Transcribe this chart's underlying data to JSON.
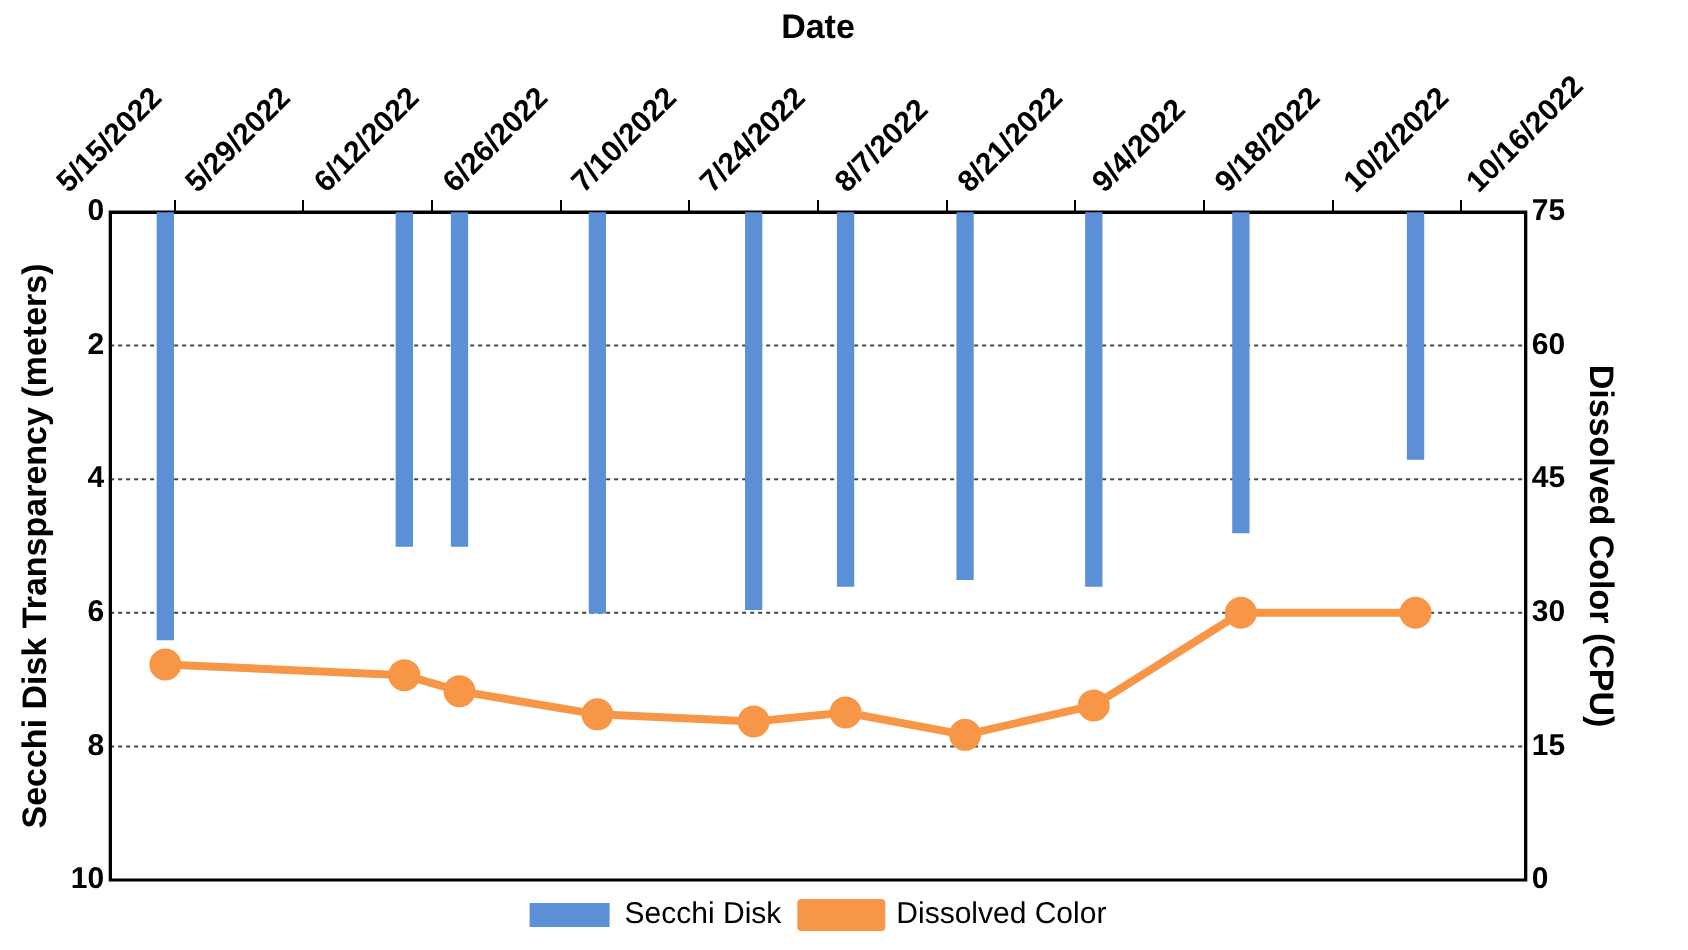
{
  "chart_data": {
    "type": "bar",
    "xlabel": "Date",
    "ylabel": "Secchi Disk Transparency (meters)",
    "y2label": "Dissolved Color (CPU)",
    "xlim": [
      "2022-05-15",
      "2022-10-16"
    ],
    "xticks": [
      {
        "value": "2022-05-15",
        "label": "5/15/2022"
      },
      {
        "value": "2022-05-29",
        "label": "5/29/2022"
      },
      {
        "value": "2022-06-12",
        "label": "6/12/2022"
      },
      {
        "value": "2022-06-26",
        "label": "6/26/2022"
      },
      {
        "value": "2022-07-10",
        "label": "7/10/2022"
      },
      {
        "value": "2022-07-24",
        "label": "7/24/2022"
      },
      {
        "value": "2022-08-07",
        "label": "8/7/2022"
      },
      {
        "value": "2022-08-21",
        "label": "8/21/2022"
      },
      {
        "value": "2022-09-04",
        "label": "9/4/2022"
      },
      {
        "value": "2022-09-18",
        "label": "9/18/2022"
      },
      {
        "value": "2022-10-02",
        "label": "10/2/2022"
      },
      {
        "value": "2022-10-16",
        "label": "10/16/2022"
      }
    ],
    "ylim": [
      10,
      0
    ],
    "yticks": [
      0,
      2,
      4,
      6,
      8,
      10
    ],
    "y2lim": [
      0,
      75
    ],
    "y2ticks": [
      0,
      15,
      30,
      45,
      60,
      75
    ],
    "grid": "y",
    "legend": "bottom",
    "series": [
      {
        "name": "Secchi Disk",
        "color": "#5b8fd6",
        "x": [
          "2022-05-21",
          "2022-06-16",
          "2022-06-22",
          "2022-07-07",
          "2022-07-24",
          "2022-08-03",
          "2022-08-16",
          "2022-08-30",
          "2022-09-15",
          "2022-10-04"
        ],
        "values": [
          6.4,
          5.0,
          5.0,
          6.0,
          5.95,
          5.6,
          5.5,
          5.6,
          4.8,
          3.7
        ]
      },
      {
        "name": "Dissolved Color",
        "type": "line",
        "axis": "y2",
        "color": "#f79646",
        "marker": "circle",
        "x": [
          "2022-05-21",
          "2022-06-16",
          "2022-06-22",
          "2022-07-07",
          "2022-07-24",
          "2022-08-03",
          "2022-08-16",
          "2022-08-30",
          "2022-09-15",
          "2022-10-04"
        ],
        "values": [
          24.2,
          23.0,
          21.2,
          18.6,
          17.8,
          18.8,
          16.3,
          19.6,
          30,
          30
        ]
      }
    ]
  }
}
